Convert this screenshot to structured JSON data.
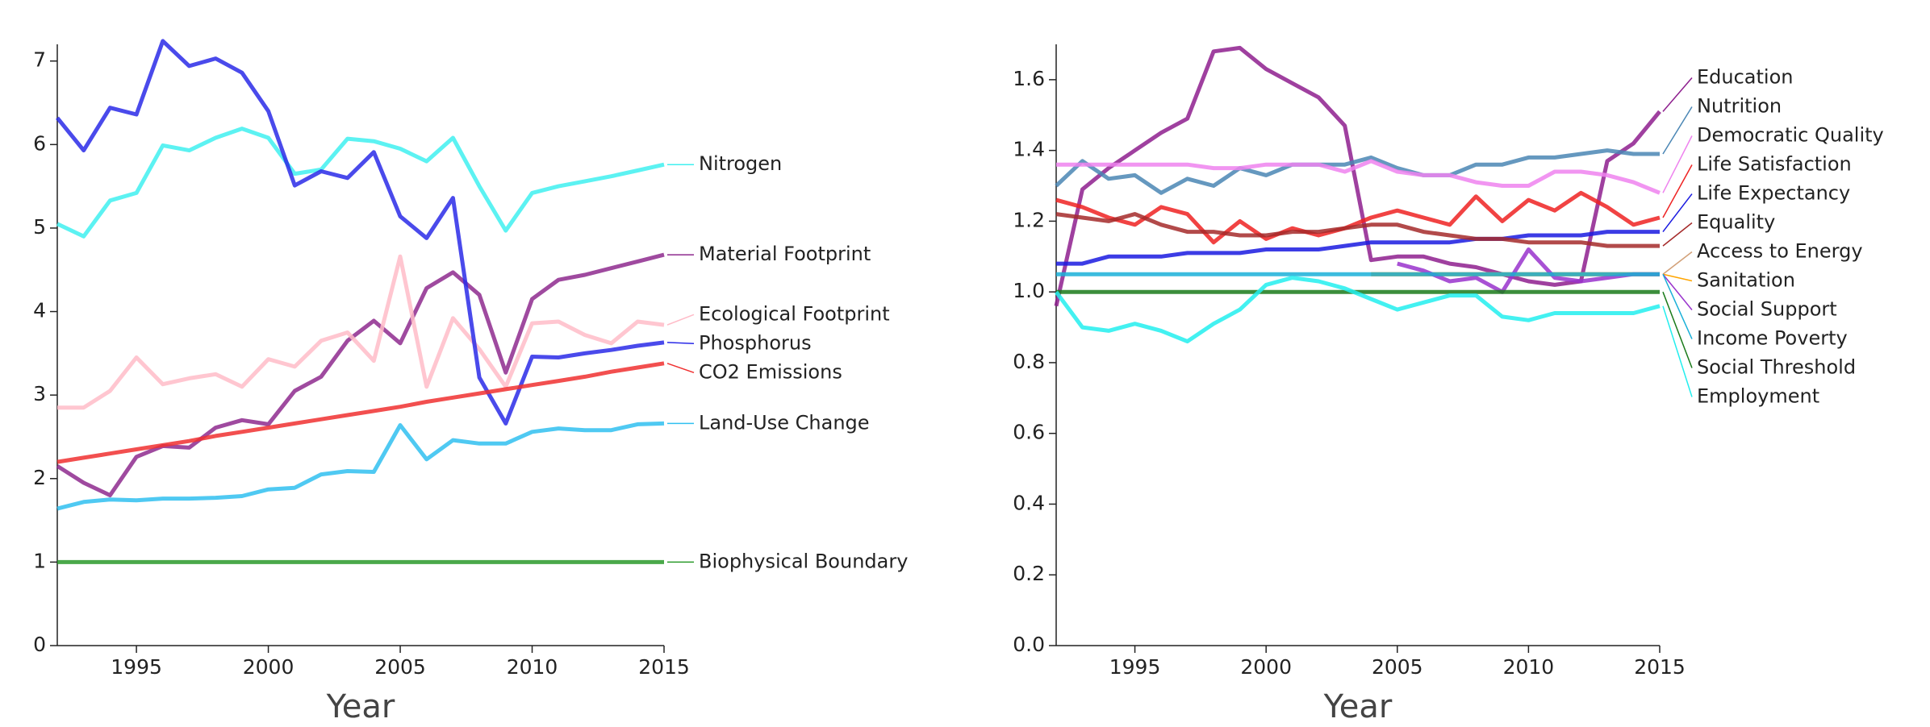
{
  "chart_data": [
    {
      "type": "line",
      "x_label": "Year",
      "x": [
        1992,
        1993,
        1994,
        1995,
        1996,
        1997,
        1998,
        1999,
        2000,
        2001,
        2002,
        2003,
        2004,
        2005,
        2006,
        2007,
        2008,
        2009,
        2010,
        2011,
        2012,
        2013,
        2014,
        2015
      ],
      "xlim": [
        1992,
        2015
      ],
      "xticks": [
        1995,
        2000,
        2005,
        2010,
        2015
      ],
      "ylim": [
        0,
        7.2
      ],
      "yticks": [
        0,
        1,
        2,
        3,
        4,
        5,
        6,
        7
      ],
      "series": [
        {
          "name": "Nitrogen",
          "color": "#40f0f0",
          "values": [
            5.05,
            4.9,
            5.33,
            5.42,
            5.99,
            5.93,
            6.08,
            6.19,
            6.08,
            5.65,
            5.7,
            6.07,
            6.04,
            5.95,
            5.8,
            6.08,
            5.5,
            4.97,
            5.42,
            5.5,
            5.56,
            5.62,
            5.69,
            5.76
          ]
        },
        {
          "name": "Material Footprint",
          "color": "#8e2a8e",
          "values": [
            2.15,
            1.95,
            1.8,
            2.26,
            2.39,
            2.37,
            2.61,
            2.7,
            2.65,
            3.05,
            3.22,
            3.65,
            3.89,
            3.62,
            4.28,
            4.47,
            4.2,
            3.27,
            4.15,
            4.38,
            4.44,
            4.52,
            4.6,
            4.68
          ]
        },
        {
          "name": "Ecological Footprint",
          "color": "#ffbcc8",
          "values": [
            2.85,
            2.85,
            3.05,
            3.45,
            3.13,
            3.2,
            3.25,
            3.1,
            3.43,
            3.34,
            3.65,
            3.75,
            3.41,
            4.66,
            3.1,
            3.92,
            3.55,
            3.1,
            3.86,
            3.88,
            3.72,
            3.62,
            3.88,
            3.84
          ]
        },
        {
          "name": "Phosphorus",
          "color": "#2a2ae8",
          "values": [
            6.32,
            5.93,
            6.44,
            6.36,
            7.24,
            6.94,
            7.03,
            6.86,
            6.4,
            5.51,
            5.68,
            5.6,
            5.91,
            5.14,
            4.88,
            5.36,
            3.21,
            2.66,
            3.46,
            3.45,
            3.5,
            3.54,
            3.59,
            3.63
          ]
        },
        {
          "name": "CO2 Emissions",
          "color": "#f03030",
          "values": [
            2.2,
            2.25,
            2.3,
            2.35,
            2.4,
            2.45,
            2.51,
            2.56,
            2.61,
            2.66,
            2.71,
            2.76,
            2.81,
            2.86,
            2.92,
            2.97,
            3.02,
            3.07,
            3.12,
            3.17,
            3.22,
            3.28,
            3.33,
            3.38
          ]
        },
        {
          "name": "Land-Use Change",
          "color": "#30c0f0",
          "values": [
            1.64,
            1.72,
            1.75,
            1.74,
            1.76,
            1.76,
            1.77,
            1.79,
            1.87,
            1.89,
            2.05,
            2.09,
            2.08,
            2.64,
            2.23,
            2.46,
            2.42,
            2.42,
            2.56,
            2.6,
            2.58,
            2.58,
            2.65,
            2.66
          ]
        },
        {
          "name": "Biophysical Boundary",
          "color": "#2a9a2a",
          "values": [
            1,
            1,
            1,
            1,
            1,
            1,
            1,
            1,
            1,
            1,
            1,
            1,
            1,
            1,
            1,
            1,
            1,
            1,
            1,
            1,
            1,
            1,
            1,
            1
          ]
        }
      ]
    },
    {
      "type": "line",
      "x_label": "Year",
      "x": [
        1992,
        1993,
        1994,
        1995,
        1996,
        1997,
        1998,
        1999,
        2000,
        2001,
        2002,
        2003,
        2004,
        2005,
        2006,
        2007,
        2008,
        2009,
        2010,
        2011,
        2012,
        2013,
        2014,
        2015
      ],
      "xlim": [
        1992,
        2015
      ],
      "xticks": [
        1995,
        2000,
        2005,
        2010,
        2015
      ],
      "ylim": [
        0,
        1.7
      ],
      "yticks": [
        {
          "value": 0,
          "label": "0.0"
        },
        0.2,
        0.4,
        0.6,
        0.8,
        {
          "value": 1,
          "label": "1.0"
        },
        1.2,
        1.4,
        1.6
      ],
      "series": [
        {
          "name": "Education",
          "color": "#8e1e8e",
          "values": [
            0.96,
            1.29,
            1.35,
            1.4,
            1.45,
            1.49,
            1.68,
            1.69,
            1.63,
            1.59,
            1.55,
            1.47,
            1.09,
            1.1,
            1.1,
            1.08,
            1.07,
            1.05,
            1.03,
            1.02,
            1.03,
            1.37,
            1.42,
            1.51
          ]
        },
        {
          "name": "Nutrition",
          "color": "#4a86b4",
          "values": [
            1.3,
            1.37,
            1.32,
            1.33,
            1.28,
            1.32,
            1.3,
            1.35,
            1.33,
            1.36,
            1.36,
            1.36,
            1.38,
            1.35,
            1.33,
            1.33,
            1.36,
            1.36,
            1.38,
            1.38,
            1.39,
            1.4,
            1.39,
            1.39
          ]
        },
        {
          "name": "Democratic Quality",
          "color": "#ee82ee",
          "values": [
            1.36,
            1.36,
            1.36,
            1.36,
            1.36,
            1.36,
            1.35,
            1.35,
            1.36,
            1.36,
            1.36,
            1.34,
            1.37,
            1.34,
            1.33,
            1.33,
            1.31,
            1.3,
            1.3,
            1.34,
            1.34,
            1.33,
            1.31,
            1.28
          ]
        },
        {
          "name": "Life Satisfaction",
          "color": "#ee2222",
          "values": [
            1.26,
            1.24,
            1.21,
            1.19,
            1.24,
            1.22,
            1.14,
            1.2,
            1.15,
            1.18,
            1.16,
            1.18,
            1.21,
            1.23,
            1.21,
            1.19,
            1.27,
            1.2,
            1.26,
            1.23,
            1.28,
            1.24,
            1.19,
            1.21
          ]
        },
        {
          "name": "Life Expectancy",
          "color": "#1a1ae0",
          "values": [
            1.08,
            1.08,
            1.1,
            1.1,
            1.1,
            1.11,
            1.11,
            1.11,
            1.12,
            1.12,
            1.12,
            1.13,
            1.14,
            1.14,
            1.14,
            1.14,
            1.15,
            1.15,
            1.16,
            1.16,
            1.16,
            1.17,
            1.17,
            1.17
          ]
        },
        {
          "name": "Equality",
          "color": "#a52a2a",
          "values": [
            1.22,
            1.21,
            1.2,
            1.22,
            1.19,
            1.17,
            1.17,
            1.16,
            1.16,
            1.17,
            1.17,
            1.18,
            1.19,
            1.19,
            1.17,
            1.16,
            1.15,
            1.15,
            1.14,
            1.14,
            1.14,
            1.13,
            1.13,
            1.13
          ]
        },
        {
          "name": "Access to Energy",
          "color": "#d2a078",
          "values": [
            null,
            null,
            null,
            null,
            null,
            null,
            null,
            null,
            null,
            null,
            null,
            null,
            1.05,
            1.05,
            1.05,
            1.05,
            1.05,
            1.05,
            1.05,
            1.05,
            1.05,
            1.05,
            1.05,
            1.05
          ]
        },
        {
          "name": "Sanitation",
          "color": "#ffa500",
          "values": [
            null,
            null,
            null,
            null,
            null,
            null,
            null,
            null,
            null,
            null,
            null,
            null,
            1.05,
            1.05,
            1.05,
            1.05,
            1.05,
            1.05,
            1.05,
            1.05,
            1.05,
            1.05,
            1.05,
            1.05
          ]
        },
        {
          "name": "Social Support",
          "color": "#9932cc",
          "values": [
            null,
            null,
            null,
            null,
            null,
            null,
            null,
            null,
            null,
            null,
            null,
            null,
            null,
            1.08,
            1.06,
            1.03,
            1.04,
            1.0,
            1.12,
            1.04,
            1.03,
            1.04,
            1.05,
            1.05
          ]
        },
        {
          "name": "Income Poverty",
          "color": "#1ab0d8",
          "values": [
            1.05,
            1.05,
            1.05,
            1.05,
            1.05,
            1.05,
            1.05,
            1.05,
            1.05,
            1.05,
            1.05,
            1.05,
            1.05,
            1.05,
            1.05,
            1.05,
            1.05,
            1.05,
            1.05,
            1.05,
            1.05,
            1.05,
            1.05,
            1.05
          ]
        },
        {
          "name": "Social Threshold",
          "color": "#1a7a1a",
          "values": [
            1,
            1,
            1,
            1,
            1,
            1,
            1,
            1,
            1,
            1,
            1,
            1,
            1,
            1,
            1,
            1,
            1,
            1,
            1,
            1,
            1,
            1,
            1,
            1
          ]
        },
        {
          "name": "Employment",
          "color": "#22eeee",
          "values": [
            1.0,
            0.9,
            0.89,
            0.91,
            0.89,
            0.86,
            0.91,
            0.95,
            1.02,
            1.04,
            1.03,
            1.01,
            0.98,
            0.95,
            0.97,
            0.99,
            0.99,
            0.93,
            0.92,
            0.94,
            0.94,
            0.94,
            0.94,
            0.96
          ]
        }
      ]
    }
  ]
}
